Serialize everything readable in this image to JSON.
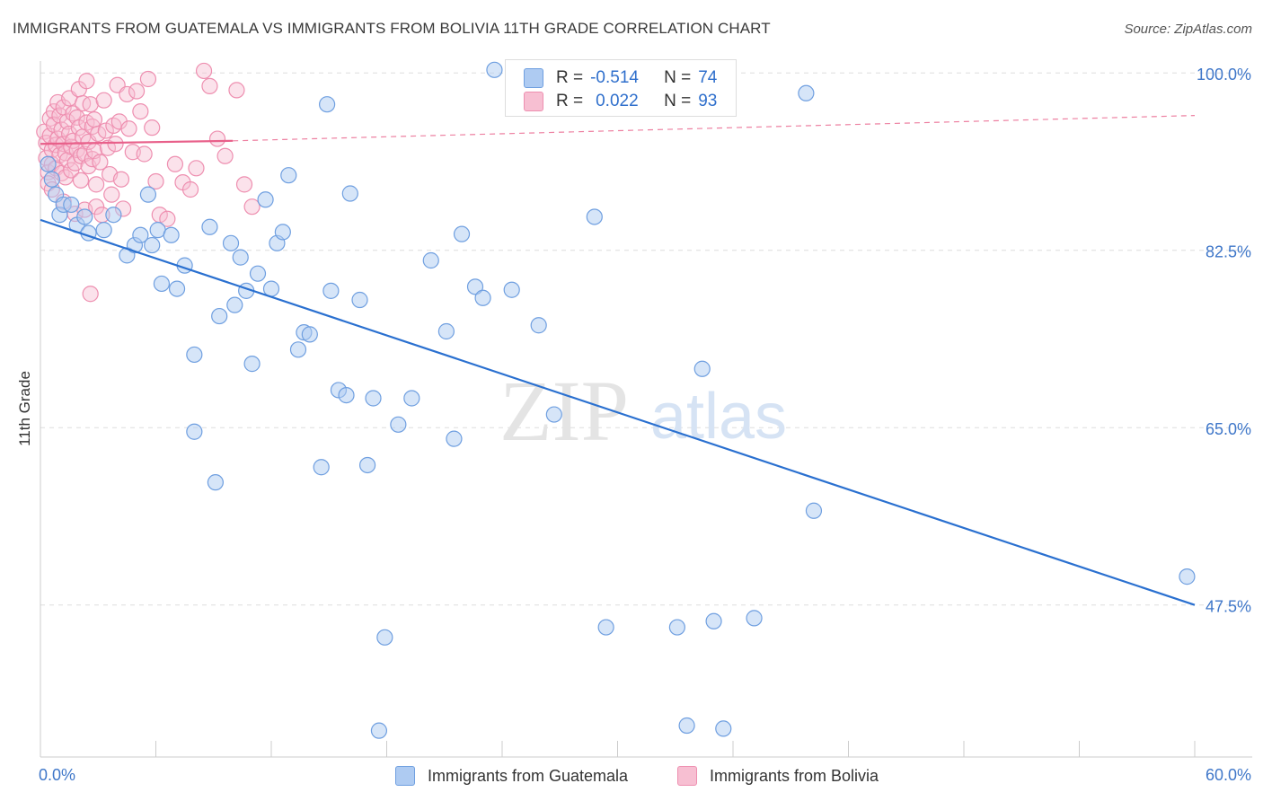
{
  "title": "IMMIGRANTS FROM GUATEMALA VS IMMIGRANTS FROM BOLIVIA 11TH GRADE CORRELATION CHART",
  "source": "Source: ZipAtlas.com",
  "watermark": {
    "zip": "ZIP",
    "atlas": "atlas"
  },
  "legend": {
    "r_label": "R =",
    "n_label": "N =",
    "guatemala": {
      "r": "-0.514",
      "n": "74"
    },
    "bolivia": {
      "r": "0.022",
      "n": "93"
    }
  },
  "colors": {
    "blue_fill": "#aecbf2",
    "blue_stroke": "#6f9fe0",
    "blue_line": "#2a70d0",
    "pink_fill": "#f7bfd2",
    "pink_stroke": "#ee8fb0",
    "pink_line": "#e8608a",
    "tick_label": "#3f77c9",
    "grid": "#dddddd"
  },
  "chart_data": {
    "type": "scatter",
    "title": "IMMIGRANTS FROM GUATEMALA VS IMMIGRANTS FROM BOLIVIA 11TH GRADE CORRELATION CHART",
    "xlabel": "",
    "ylabel": "11th Grade",
    "xlim": [
      0,
      60
    ],
    "ylim": [
      32.5,
      102.5
    ],
    "x_tick_labels": [
      "0.0%",
      "60.0%"
    ],
    "y_ticks": [
      {
        "value": 100.0,
        "label": "100.0%"
      },
      {
        "value": 82.5,
        "label": "82.5%"
      },
      {
        "value": 65.0,
        "label": "65.0%"
      },
      {
        "value": 47.5,
        "label": "47.5%"
      }
    ],
    "series": [
      {
        "name": "Immigrants from Guatemala",
        "color": "blue",
        "trend": {
          "x": [
            0,
            60
          ],
          "y": [
            85.5,
            47.5
          ],
          "style": "solid"
        },
        "points": [
          [
            0.4,
            91.0
          ],
          [
            0.6,
            89.5
          ],
          [
            0.8,
            88.0
          ],
          [
            1.0,
            86.0
          ],
          [
            1.2,
            87.0
          ],
          [
            1.6,
            87.0
          ],
          [
            1.9,
            85.0
          ],
          [
            2.3,
            85.8
          ],
          [
            2.5,
            84.2
          ],
          [
            3.3,
            84.5
          ],
          [
            3.8,
            86.0
          ],
          [
            4.5,
            82.0
          ],
          [
            4.9,
            83.0
          ],
          [
            5.2,
            84.0
          ],
          [
            5.6,
            88.0
          ],
          [
            5.8,
            83.0
          ],
          [
            6.1,
            84.5
          ],
          [
            6.3,
            79.2
          ],
          [
            6.8,
            84.0
          ],
          [
            7.1,
            78.7
          ],
          [
            7.5,
            81.0
          ],
          [
            8.0,
            72.2
          ],
          [
            8.0,
            64.6
          ],
          [
            8.8,
            84.8
          ],
          [
            9.1,
            59.6
          ],
          [
            9.3,
            76.0
          ],
          [
            9.9,
            83.2
          ],
          [
            10.1,
            77.1
          ],
          [
            10.4,
            81.8
          ],
          [
            10.7,
            78.5
          ],
          [
            11.0,
            71.3
          ],
          [
            11.3,
            80.2
          ],
          [
            11.7,
            87.5
          ],
          [
            12.0,
            78.7
          ],
          [
            12.3,
            83.2
          ],
          [
            12.6,
            84.3
          ],
          [
            12.9,
            89.9
          ],
          [
            13.4,
            72.7
          ],
          [
            13.7,
            74.4
          ],
          [
            14.0,
            74.2
          ],
          [
            14.6,
            61.1
          ],
          [
            14.9,
            96.9
          ],
          [
            15.1,
            78.5
          ],
          [
            15.5,
            68.7
          ],
          [
            15.9,
            68.2
          ],
          [
            16.1,
            88.1
          ],
          [
            16.6,
            77.6
          ],
          [
            17.0,
            61.3
          ],
          [
            17.3,
            67.9
          ],
          [
            17.6,
            35.1
          ],
          [
            17.9,
            44.3
          ],
          [
            18.6,
            65.3
          ],
          [
            19.3,
            67.9
          ],
          [
            20.3,
            81.5
          ],
          [
            21.1,
            74.5
          ],
          [
            21.5,
            63.9
          ],
          [
            21.9,
            84.1
          ],
          [
            22.6,
            78.9
          ],
          [
            23.0,
            77.8
          ],
          [
            23.6,
            100.3
          ],
          [
            24.5,
            78.6
          ],
          [
            25.9,
            75.1
          ],
          [
            26.7,
            66.3
          ],
          [
            28.8,
            85.8
          ],
          [
            29.4,
            45.3
          ],
          [
            33.1,
            45.3
          ],
          [
            34.4,
            70.8
          ],
          [
            33.6,
            35.6
          ],
          [
            35.0,
            45.9
          ],
          [
            35.5,
            35.3
          ],
          [
            37.1,
            46.2
          ],
          [
            39.8,
            98.0
          ],
          [
            40.2,
            56.8
          ],
          [
            59.6,
            50.3
          ]
        ]
      },
      {
        "name": "Immigrants from Bolivia",
        "color": "pink",
        "trend": {
          "x": [
            0,
            10
          ],
          "y": [
            93.0,
            93.3
          ],
          "style": "solid",
          "dashed_extension": {
            "x": [
              10,
              60
            ],
            "y": [
              93.3,
              95.8
            ]
          }
        },
        "points": [
          [
            0.2,
            94.2
          ],
          [
            0.3,
            93.1
          ],
          [
            0.3,
            91.6
          ],
          [
            0.4,
            90.2
          ],
          [
            0.4,
            89.1
          ],
          [
            0.5,
            95.5
          ],
          [
            0.5,
            93.8
          ],
          [
            0.6,
            92.4
          ],
          [
            0.6,
            91.0
          ],
          [
            0.7,
            96.2
          ],
          [
            0.7,
            94.9
          ],
          [
            0.8,
            92.9
          ],
          [
            0.8,
            90.6
          ],
          [
            0.9,
            97.1
          ],
          [
            0.9,
            93.5
          ],
          [
            1.0,
            95.8
          ],
          [
            1.0,
            91.9
          ],
          [
            1.1,
            94.4
          ],
          [
            1.1,
            90.1
          ],
          [
            1.2,
            96.6
          ],
          [
            1.2,
            93.0
          ],
          [
            1.3,
            92.1
          ],
          [
            1.3,
            89.7
          ],
          [
            1.4,
            95.2
          ],
          [
            1.4,
            91.4
          ],
          [
            1.5,
            97.5
          ],
          [
            1.5,
            94.0
          ],
          [
            1.6,
            92.7
          ],
          [
            1.6,
            90.4
          ],
          [
            1.7,
            96.0
          ],
          [
            1.7,
            93.3
          ],
          [
            1.8,
            91.1
          ],
          [
            1.8,
            86.1
          ],
          [
            1.9,
            95.6
          ],
          [
            1.9,
            92.4
          ],
          [
            2.0,
            98.4
          ],
          [
            2.0,
            94.6
          ],
          [
            2.1,
            91.8
          ],
          [
            2.1,
            89.4
          ],
          [
            2.2,
            97.0
          ],
          [
            2.2,
            93.7
          ],
          [
            2.3,
            92.0
          ],
          [
            2.3,
            86.5
          ],
          [
            2.4,
            99.2
          ],
          [
            2.4,
            95.1
          ],
          [
            2.5,
            93.2
          ],
          [
            2.5,
            90.8
          ],
          [
            2.6,
            96.9
          ],
          [
            2.6,
            78.2
          ],
          [
            2.7,
            94.7
          ],
          [
            2.7,
            91.5
          ],
          [
            2.8,
            95.4
          ],
          [
            2.8,
            92.3
          ],
          [
            2.9,
            89.0
          ],
          [
            2.9,
            86.8
          ],
          [
            3.0,
            94.0
          ],
          [
            3.1,
            91.2
          ],
          [
            3.2,
            86.0
          ],
          [
            3.3,
            97.3
          ],
          [
            3.4,
            94.3
          ],
          [
            3.5,
            92.6
          ],
          [
            3.6,
            90.0
          ],
          [
            3.7,
            88.0
          ],
          [
            3.8,
            94.8
          ],
          [
            3.9,
            93.0
          ],
          [
            4.0,
            98.8
          ],
          [
            4.1,
            95.2
          ],
          [
            4.2,
            89.5
          ],
          [
            4.3,
            86.6
          ],
          [
            4.5,
            97.9
          ],
          [
            4.6,
            94.5
          ],
          [
            4.8,
            92.2
          ],
          [
            5.0,
            98.2
          ],
          [
            5.2,
            96.2
          ],
          [
            5.4,
            92.0
          ],
          [
            5.6,
            99.4
          ],
          [
            5.8,
            94.6
          ],
          [
            6.0,
            89.3
          ],
          [
            6.2,
            86.0
          ],
          [
            6.6,
            85.6
          ],
          [
            7.0,
            91.0
          ],
          [
            7.4,
            89.2
          ],
          [
            7.8,
            88.5
          ],
          [
            8.1,
            90.6
          ],
          [
            8.5,
            100.2
          ],
          [
            8.8,
            98.7
          ],
          [
            9.2,
            93.5
          ],
          [
            9.6,
            91.8
          ],
          [
            10.2,
            98.3
          ],
          [
            10.6,
            89.0
          ],
          [
            11.0,
            86.8
          ],
          [
            1.2,
            87.3
          ],
          [
            0.6,
            88.5
          ]
        ]
      }
    ]
  },
  "bottom_legend": {
    "guatemala": "Immigrants from Guatemala",
    "bolivia": "Immigrants from Bolivia"
  }
}
